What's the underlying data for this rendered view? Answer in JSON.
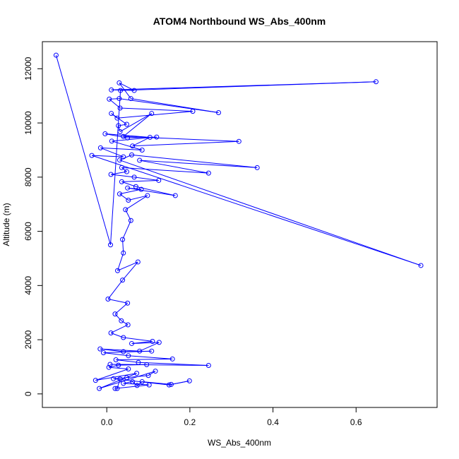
{
  "chart_data": {
    "type": "line",
    "title": "ATOM4 Northbound WS_Abs_400nm",
    "xlabel": "WS_Abs_400nm",
    "ylabel": "Altitude (m)",
    "xlim": [
      -0.155,
      0.795
    ],
    "ylim": [
      -500,
      13000
    ],
    "x_ticks": [
      0.0,
      0.2,
      0.4,
      0.6
    ],
    "x_tick_labels": [
      "0.0",
      "0.2",
      "0.4",
      "0.6"
    ],
    "y_ticks": [
      0,
      2000,
      4000,
      6000,
      8000,
      10000,
      12000
    ],
    "y_tick_labels": [
      "0",
      "2000",
      "4000",
      "6000",
      "8000",
      "10000",
      "12000"
    ],
    "grid": false,
    "legend": "none",
    "series": [
      {
        "color": "#0000ff",
        "marker": "open-circle",
        "points": [
          [
            -0.122,
            12500
          ],
          [
            0.009,
            5500
          ],
          [
            0.033,
            11200
          ],
          [
            0.648,
            11520
          ],
          [
            0.011,
            11220
          ],
          [
            0.066,
            11200
          ],
          [
            0.03,
            11480
          ],
          [
            0.058,
            10900
          ],
          [
            0.269,
            10380
          ],
          [
            0.03,
            10900
          ],
          [
            0.006,
            10880
          ],
          [
            0.032,
            10550
          ],
          [
            0.207,
            10430
          ],
          [
            0.025,
            10180
          ],
          [
            0.011,
            10350
          ],
          [
            0.048,
            9950
          ],
          [
            0.028,
            9900
          ],
          [
            0.032,
            9680
          ],
          [
            0.108,
            10350
          ],
          [
            0.04,
            9500
          ],
          [
            0.318,
            9320
          ],
          [
            0.062,
            9150
          ],
          [
            0.104,
            9470
          ],
          [
            -0.004,
            9600
          ],
          [
            0.05,
            9450
          ],
          [
            0.12,
            9480
          ],
          [
            0.012,
            9330
          ],
          [
            0.085,
            9000
          ],
          [
            -0.015,
            9080
          ],
          [
            0.04,
            8750
          ],
          [
            -0.036,
            8800
          ],
          [
            0.756,
            4740
          ],
          [
            0.031,
            8630
          ],
          [
            0.06,
            8820
          ],
          [
            0.362,
            8350
          ],
          [
            0.079,
            8620
          ],
          [
            0.245,
            8150
          ],
          [
            0.036,
            8350
          ],
          [
            0.048,
            8200
          ],
          [
            0.01,
            8100
          ],
          [
            0.066,
            8000
          ],
          [
            0.125,
            7880
          ],
          [
            0.036,
            7830
          ],
          [
            0.07,
            7650
          ],
          [
            0.165,
            7320
          ],
          [
            0.05,
            7600
          ],
          [
            0.083,
            7550
          ],
          [
            0.031,
            7380
          ],
          [
            0.052,
            7150
          ],
          [
            0.098,
            7320
          ],
          [
            0.045,
            6800
          ],
          [
            0.058,
            6400
          ],
          [
            0.038,
            5700
          ],
          [
            0.04,
            5200
          ],
          [
            0.026,
            4550
          ],
          [
            0.075,
            4870
          ],
          [
            0.038,
            4200
          ],
          [
            0.003,
            3500
          ],
          [
            0.05,
            3350
          ],
          [
            0.02,
            2950
          ],
          [
            0.035,
            2700
          ],
          [
            0.051,
            2550
          ],
          [
            0.01,
            2250
          ],
          [
            0.04,
            2080
          ],
          [
            0.11,
            1940
          ],
          [
            0.06,
            1860
          ],
          [
            0.126,
            1900
          ],
          [
            0.079,
            1580
          ],
          [
            -0.016,
            1660
          ],
          [
            0.04,
            1560
          ],
          [
            0.108,
            1580
          ],
          [
            -0.008,
            1520
          ],
          [
            0.052,
            1410
          ],
          [
            0.158,
            1290
          ],
          [
            0.022,
            1260
          ],
          [
            0.076,
            1160
          ],
          [
            0.245,
            1050
          ],
          [
            0.008,
            1090
          ],
          [
            0.096,
            1080
          ],
          [
            0.028,
            1060
          ],
          [
            0.005,
            980
          ],
          [
            0.052,
            920
          ],
          [
            -0.027,
            500
          ],
          [
            0.072,
            760
          ],
          [
            -0.018,
            200
          ],
          [
            0.117,
            840
          ],
          [
            0.1,
            680
          ],
          [
            0.048,
            600
          ],
          [
            0.016,
            560
          ],
          [
            0.15,
            330
          ],
          [
            0.199,
            480
          ],
          [
            0.155,
            350
          ],
          [
            0.085,
            450
          ],
          [
            0.073,
            310
          ],
          [
            0.062,
            450
          ],
          [
            0.04,
            390
          ],
          [
            0.102,
            330
          ],
          [
            0.02,
            200
          ],
          [
            0.025,
            200
          ],
          [
            0.032,
            550
          ]
        ]
      }
    ]
  }
}
